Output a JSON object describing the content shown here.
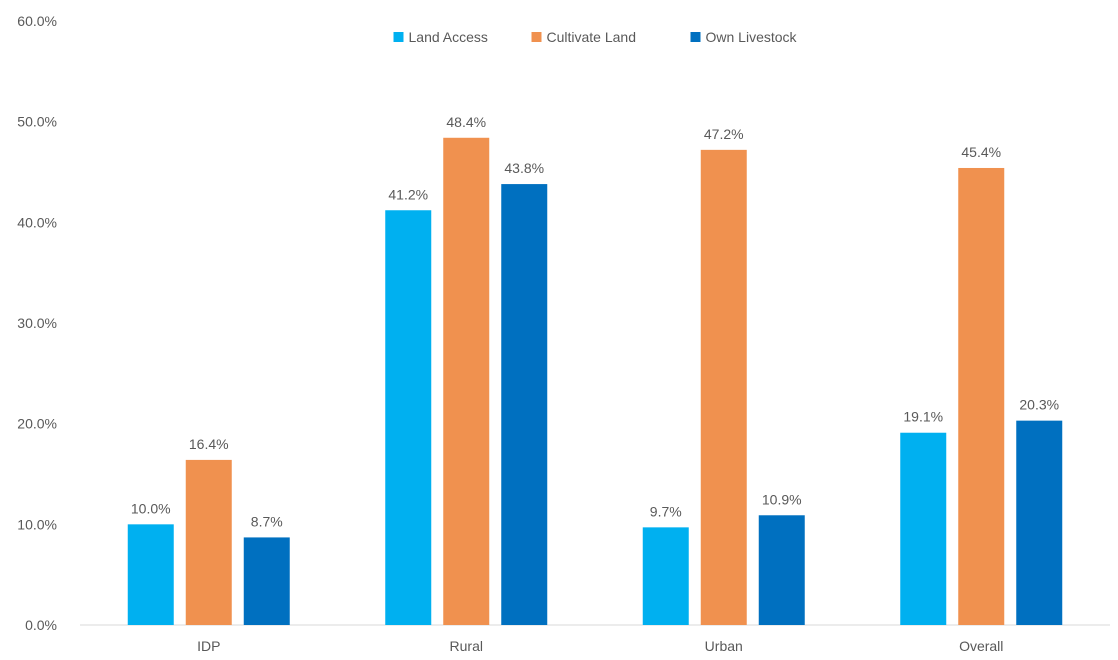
{
  "chart_data": {
    "type": "bar",
    "title": "",
    "xlabel": "",
    "ylabel": "",
    "categories": [
      "IDP",
      "Rural",
      "Urban",
      "Overall"
    ],
    "series": [
      {
        "name": "Land Access",
        "color": "#00B0F0",
        "values": [
          10.0,
          41.2,
          9.7,
          19.1
        ],
        "labels": [
          "10.0%",
          "41.2%",
          "9.7%",
          "19.1%"
        ]
      },
      {
        "name": "Cultivate Land",
        "color": "#F0914F",
        "values": [
          16.4,
          48.4,
          47.2,
          45.4
        ],
        "labels": [
          "16.4%",
          "48.4%",
          "47.2%",
          "45.4%"
        ]
      },
      {
        "name": "Own Livestock",
        "color": "#0070C0",
        "values": [
          8.7,
          43.8,
          10.9,
          20.3
        ],
        "labels": [
          "8.7%",
          "43.8%",
          "10.9%",
          "20.3%"
        ]
      }
    ],
    "ylim": [
      0,
      60
    ],
    "yticks": [
      0,
      10,
      20,
      30,
      40,
      50,
      60
    ],
    "ytick_labels": [
      "0.0%",
      "10.0%",
      "20.0%",
      "30.0%",
      "40.0%",
      "50.0%",
      "60.0%"
    ],
    "grid": false,
    "legend_position": "top-center"
  }
}
